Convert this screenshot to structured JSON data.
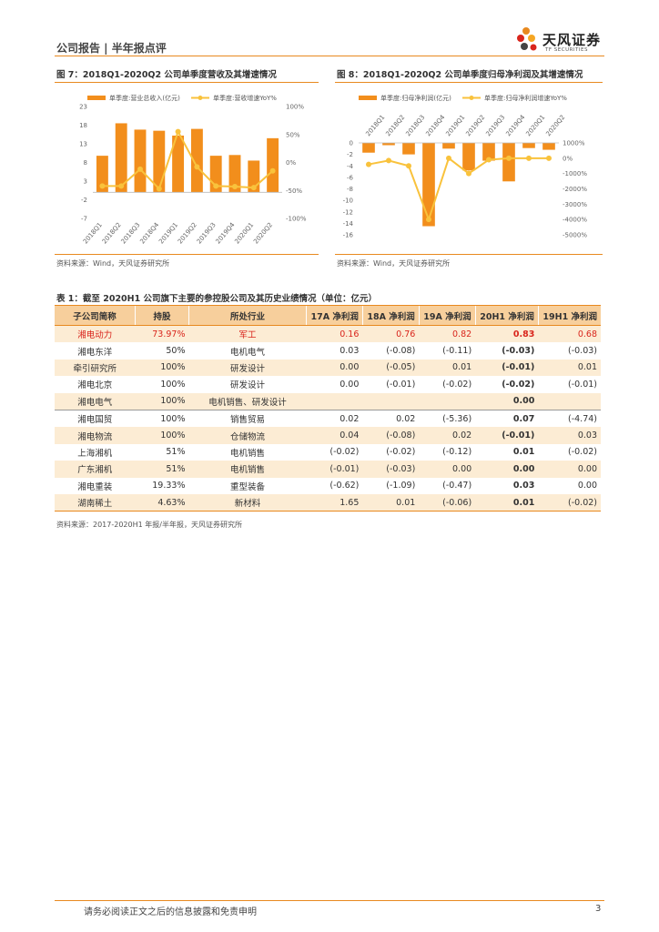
{
  "header": {
    "title": "公司报告 | 半年报点评",
    "logo_text": "天风证券",
    "logo_subtext": "TF SECURITIES",
    "accent_color": "#e8891f"
  },
  "figure7": {
    "title": "图 7：2018Q1-2020Q2 公司单季度营收及其增速情况",
    "source": "资料来源：Wind，天风证券研究所"
  },
  "figure8": {
    "title": "图 8：2018Q1-2020Q2 公司单季度归母净利润及其增速情况",
    "source": "资料来源：Wind，天风证券研究所"
  },
  "chart_data": [
    {
      "type": "bar",
      "categories": [
        "2018Q1",
        "2018Q2",
        "2018Q3",
        "2018Q4",
        "2019Q1",
        "2019Q2",
        "2019Q3",
        "2019Q4",
        "2020Q1",
        "2020Q2"
      ],
      "series": [
        {
          "name": "单季度:营业总收入(亿元)",
          "type": "bar",
          "axis": "left",
          "color": "#f28e1c",
          "values": [
            9.8,
            18.5,
            16.8,
            16.5,
            15.2,
            17.0,
            9.8,
            10.0,
            8.5,
            14.5
          ]
        },
        {
          "name": "单季度:营收增速YoY%",
          "type": "line",
          "axis": "right",
          "color": "#f9c23c",
          "values": [
            -42,
            -42,
            -12,
            -47,
            55,
            -8,
            -42,
            -43,
            -45,
            -15
          ]
        }
      ],
      "left_axis": {
        "ticks": [
          -7,
          -2,
          3,
          8,
          13,
          18,
          23
        ],
        "range": [
          -7,
          23
        ]
      },
      "right_axis": {
        "ticks": [
          "100%",
          "50%",
          "0%",
          "-50%",
          "-100%"
        ],
        "range": [
          -100,
          100
        ]
      },
      "legend_position": "top"
    },
    {
      "type": "bar",
      "categories": [
        "2018Q1",
        "2018Q2",
        "2018Q3",
        "2018Q4",
        "2019Q1",
        "2019Q2",
        "2019Q3",
        "2019Q4",
        "2020Q1",
        "2020Q2"
      ],
      "series": [
        {
          "name": "单季度:归母净利润(亿元)",
          "type": "bar",
          "axis": "left",
          "color": "#f28e1c",
          "values": [
            -1.7,
            -0.4,
            -2.0,
            -14.5,
            -1.0,
            -4.8,
            -3.1,
            -6.7,
            -0.9,
            -1.2
          ]
        },
        {
          "name": "单季度:归母净利润增速YoY%",
          "type": "line",
          "axis": "right",
          "color": "#f9c23c",
          "values": [
            -400,
            -150,
            -500,
            -4000,
            0,
            -1000,
            -100,
            0,
            0,
            0
          ]
        }
      ],
      "left_axis": {
        "ticks": [
          0,
          -2,
          -4,
          -6,
          -8,
          -10,
          -12,
          -14,
          -16
        ],
        "range": [
          -16,
          0
        ]
      },
      "right_axis": {
        "ticks": [
          "1000%",
          "0%",
          "-1000%",
          "-2000%",
          "-3000%",
          "-4000%",
          "-5000%"
        ],
        "range": [
          -5000,
          1000
        ]
      },
      "legend_position": "top"
    }
  ],
  "table": {
    "title": "表 1：截至 2020H1 公司旗下主要的参控股公司及其历史业绩情况（单位：亿元）",
    "headers": [
      "子公司简称",
      "持股",
      "所处行业",
      "17A 净利润",
      "18A 净利润",
      "19A 净利润",
      "20H1 净利润",
      "19H1 净利润"
    ],
    "rows": [
      [
        "湘电动力",
        "73.97%",
        "军工",
        "0.16",
        "0.76",
        "0.82",
        "0.83",
        "0.68"
      ],
      [
        "湘电东洋",
        "50%",
        "电机电气",
        "0.03",
        "(-0.08)",
        "(-0.11)",
        "(-0.03)",
        "(-0.03)"
      ],
      [
        "牵引研究所",
        "100%",
        "研发设计",
        "0.00",
        "(-0.05)",
        "0.01",
        "(-0.01)",
        "0.01"
      ],
      [
        "湘电北京",
        "100%",
        "研发设计",
        "0.00",
        "(-0.01)",
        "(-0.02)",
        "(-0.02)",
        "(-0.01)"
      ],
      [
        "湘电电气",
        "100%",
        "电机销售、研发设计",
        "",
        "",
        "",
        "0.00",
        ""
      ],
      [
        "湘电国贸",
        "100%",
        "销售贸易",
        "0.02",
        "0.02",
        "(-5.36)",
        "0.07",
        "(-4.74)"
      ],
      [
        "湘电物流",
        "100%",
        "仓储物流",
        "0.04",
        "(-0.08)",
        "0.02",
        "(-0.01)",
        "0.03"
      ],
      [
        "上海湘机",
        "51%",
        "电机销售",
        "(-0.02)",
        "(-0.02)",
        "(-0.12)",
        "0.01",
        "(-0.02)"
      ],
      [
        "广东湘机",
        "51%",
        "电机销售",
        "(-0.01)",
        "(-0.03)",
        "0.00",
        "0.00",
        "0.00"
      ],
      [
        "湘电重装",
        "19.33%",
        "重型装备",
        "(-0.62)",
        "(-1.09)",
        "(-0.47)",
        "0.03",
        "0.00"
      ],
      [
        "湖南稀土",
        "4.63%",
        "新材料",
        "1.65",
        "0.01",
        "(-0.06)",
        "0.01",
        "(-0.02)"
      ]
    ],
    "source": "资料来源：2017-2020H1 年报/半年报，天风证券研究所"
  },
  "footer": {
    "disclaimer": "请务必阅读正文之后的信息披露和免责申明",
    "page": "3"
  }
}
